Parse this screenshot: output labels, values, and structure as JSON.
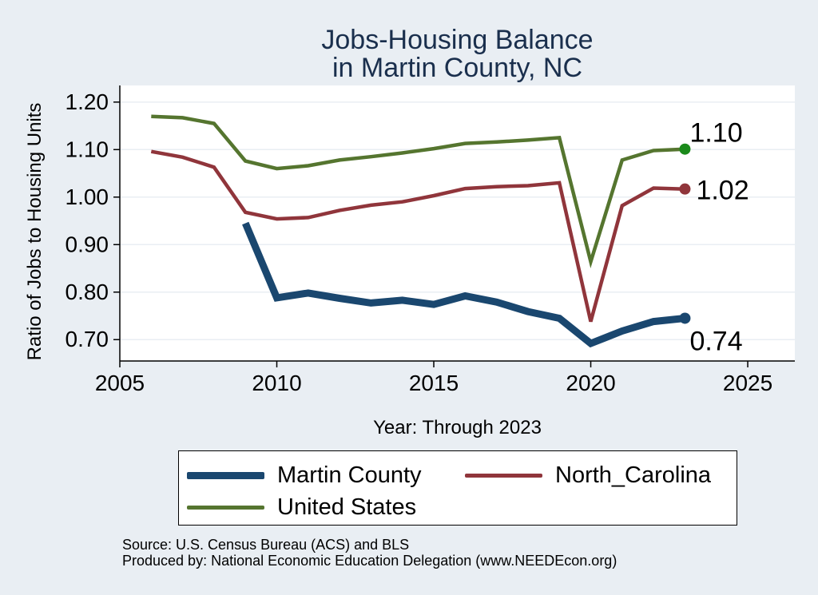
{
  "chart_data": {
    "type": "line",
    "title": [
      "Jobs-Housing Balance",
      "in Martin County, NC"
    ],
    "xlabel": "Year: Through 2023",
    "ylabel": "Ratio of Jobs to Housing Units",
    "xlim": [
      2005,
      2026.5
    ],
    "ylim": [
      0.655,
      1.235
    ],
    "xticks": [
      2005,
      2010,
      2015,
      2020,
      2025
    ],
    "yticks": [
      0.7,
      0.8,
      0.9,
      1.0,
      1.1,
      1.2
    ],
    "ytick_labels": [
      "0.70",
      "0.80",
      "0.90",
      "1.00",
      "1.10",
      "1.20"
    ],
    "grid": true,
    "legend_position": "bottom",
    "series": [
      {
        "name": "Martin County",
        "color": "#1a476f",
        "x": [
          2009,
          2010,
          2011,
          2012,
          2013,
          2014,
          2015,
          2016,
          2017,
          2018,
          2019,
          2020,
          2021,
          2022,
          2023
        ],
        "y": [
          0.945,
          0.788,
          0.798,
          0.787,
          0.777,
          0.783,
          0.774,
          0.792,
          0.779,
          0.759,
          0.745,
          0.692,
          0.718,
          0.738,
          0.745
        ],
        "end_label": "0.74"
      },
      {
        "name": "North_Carolina",
        "color": "#90353b",
        "x": [
          2006,
          2007,
          2008,
          2009,
          2010,
          2011,
          2012,
          2013,
          2014,
          2015,
          2016,
          2017,
          2018,
          2019,
          2020,
          2021,
          2022,
          2023
        ],
        "y": [
          1.096,
          1.084,
          1.063,
          0.968,
          0.954,
          0.957,
          0.972,
          0.983,
          0.99,
          1.003,
          1.018,
          1.022,
          1.024,
          1.03,
          0.738,
          0.982,
          1.019,
          1.017
        ],
        "end_label": "1.02"
      },
      {
        "name": "United States",
        "color": "#55752f",
        "x": [
          2006,
          2007,
          2008,
          2009,
          2010,
          2011,
          2012,
          2013,
          2014,
          2015,
          2016,
          2017,
          2018,
          2019,
          2020,
          2021,
          2022,
          2023
        ],
        "y": [
          1.17,
          1.167,
          1.155,
          1.076,
          1.06,
          1.066,
          1.078,
          1.085,
          1.093,
          1.102,
          1.113,
          1.116,
          1.12,
          1.125,
          0.864,
          1.078,
          1.098,
          1.101
        ],
        "end_label": "1.10"
      }
    ]
  },
  "footer": {
    "source": "Source: U.S. Census Bureau (ACS) and BLS",
    "produced_by": "Produced by: National Economic Education Delegation (www.NEEDEcon.org)"
  }
}
